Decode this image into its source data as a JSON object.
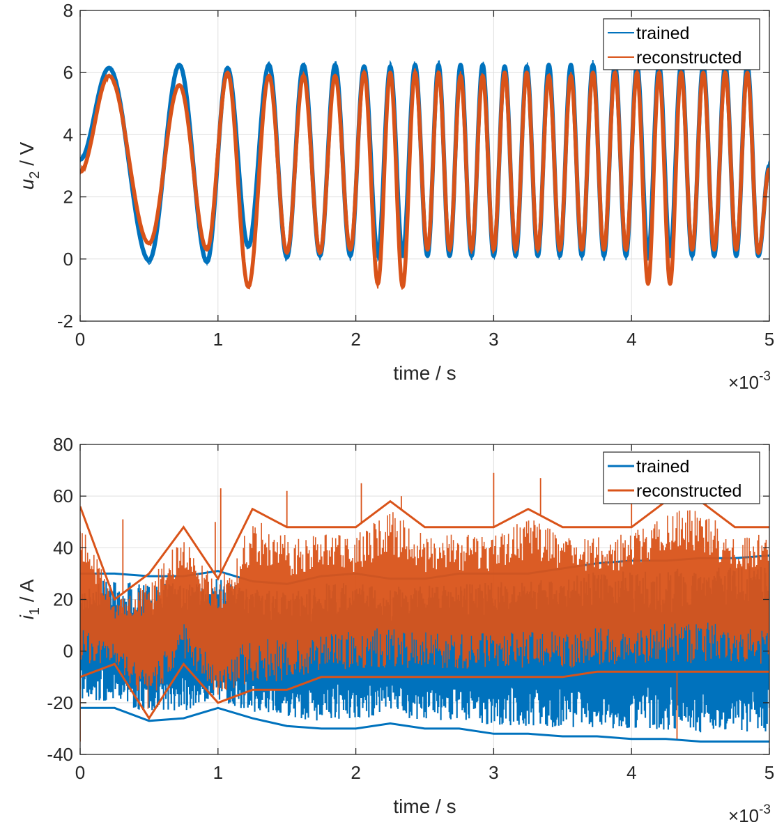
{
  "colors": {
    "trained": "#0072BD",
    "reconstructed": "#D95319",
    "grid": "#DFDFDF",
    "axis": "#262626"
  },
  "chart_data": [
    {
      "type": "line",
      "xlabel": "time / s",
      "ylabel_main": "u",
      "ylabel_sub": "2",
      "ylabel_rest": " / V",
      "xlim": [
        0,
        5
      ],
      "ylim": [
        -2,
        8
      ],
      "x_ticks": [
        0,
        1,
        2,
        3,
        4,
        5
      ],
      "y_ticks": [
        -2,
        0,
        2,
        4,
        6,
        8
      ],
      "x_tick_labels": [
        "0",
        "1",
        "2",
        "3",
        "4",
        "5"
      ],
      "y_tick_labels": [
        "-2",
        "0",
        "2",
        "4",
        "6",
        "8"
      ],
      "x_exponent_base": "×10",
      "x_exponent_power": "-3",
      "grid": true,
      "legend_position": "top-right",
      "series": [
        {
          "name": "trained",
          "x": [
            0,
            0.21,
            0.5,
            0.72,
            0.92,
            1.07,
            1.22,
            1.37,
            1.5,
            1.62,
            1.74,
            1.85,
            1.96,
            2.06,
            2.16,
            2.25,
            2.34,
            2.43,
            2.52,
            2.6,
            2.68,
            2.76,
            2.84,
            2.92,
            3.0,
            3.08,
            3.16,
            3.24,
            3.32,
            3.4,
            3.48,
            3.56,
            3.64,
            3.72,
            3.8,
            3.88,
            3.96,
            4.04,
            4.12,
            4.2,
            4.28,
            4.36,
            4.44,
            4.52,
            4.6,
            4.68,
            4.76,
            4.84,
            4.92,
            5.0
          ],
          "values": [
            3.2,
            6.15,
            -0.05,
            6.25,
            -0.1,
            6.15,
            0.4,
            6.25,
            0.05,
            6.25,
            0.1,
            6.25,
            0.1,
            6.2,
            0.1,
            6.2,
            0.1,
            6.25,
            0.1,
            6.25,
            0.1,
            6.25,
            0.1,
            6.25,
            0.1,
            6.2,
            0.1,
            6.2,
            0.1,
            6.25,
            0.1,
            6.25,
            0.1,
            6.25,
            0.1,
            6.25,
            0.1,
            6.25,
            0.1,
            6.25,
            0.1,
            6.25,
            0.1,
            6.25,
            0.1,
            6.25,
            0.1,
            6.25,
            0.1,
            3.0
          ]
        },
        {
          "name": "reconstructed",
          "x": [
            0,
            0.21,
            0.5,
            0.72,
            0.92,
            1.07,
            1.22,
            1.37,
            1.5,
            1.62,
            1.74,
            1.85,
            1.96,
            2.06,
            2.16,
            2.25,
            2.34,
            2.43,
            2.52,
            2.6,
            2.68,
            2.76,
            2.84,
            2.92,
            3.0,
            3.08,
            3.16,
            3.24,
            3.32,
            3.4,
            3.48,
            3.56,
            3.64,
            3.72,
            3.8,
            3.88,
            3.96,
            4.04,
            4.12,
            4.2,
            4.28,
            4.36,
            4.44,
            4.52,
            4.6,
            4.68,
            4.76,
            4.84,
            4.92,
            5.0
          ],
          "values": [
            2.8,
            5.9,
            0.5,
            5.6,
            0.3,
            6.0,
            -0.9,
            5.9,
            0.2,
            5.9,
            0.2,
            5.9,
            0.3,
            6.0,
            -0.8,
            6.0,
            -0.9,
            6.0,
            0.3,
            6.0,
            0.3,
            5.9,
            0.3,
            5.9,
            0.3,
            6.0,
            0.3,
            6.0,
            0.3,
            5.9,
            0.3,
            5.9,
            0.3,
            6.0,
            0.3,
            6.0,
            0.3,
            6.0,
            -0.8,
            6.0,
            -0.8,
            6.0,
            0.3,
            6.0,
            0.3,
            6.0,
            0.3,
            6.0,
            0.2,
            2.9
          ]
        }
      ]
    },
    {
      "type": "line",
      "xlabel": "time / s",
      "ylabel_main": "i",
      "ylabel_sub": "1",
      "ylabel_rest": " / A",
      "xlim": [
        0,
        5
      ],
      "ylim": [
        -40,
        80
      ],
      "x_ticks": [
        0,
        1,
        2,
        3,
        4,
        5
      ],
      "y_ticks": [
        -40,
        -20,
        0,
        20,
        40,
        60,
        80
      ],
      "x_tick_labels": [
        "0",
        "1",
        "2",
        "3",
        "4",
        "5"
      ],
      "y_tick_labels": [
        "-40",
        "-20",
        "0",
        "20",
        "40",
        "60",
        "80"
      ],
      "x_exponent_base": "×10",
      "x_exponent_power": "-3",
      "grid": true,
      "legend_position": "top-right",
      "series": [
        {
          "name": "trained",
          "x": [
            0,
            0.25,
            0.5,
            0.75,
            1.0,
            1.25,
            1.5,
            1.75,
            2.0,
            2.25,
            2.5,
            2.75,
            3.0,
            3.25,
            3.5,
            3.75,
            4.0,
            4.25,
            4.5,
            4.75,
            5.0
          ],
          "upper": [
            30,
            30,
            29,
            29,
            31,
            27,
            26,
            29,
            30,
            28,
            28,
            30,
            30,
            30,
            32,
            34,
            35,
            35,
            36,
            36,
            37
          ],
          "lower": [
            -22,
            -22,
            -27,
            -26,
            -22,
            -26,
            -29,
            -30,
            -30,
            -28,
            -30,
            -30,
            -32,
            -32,
            -33,
            -33,
            -34,
            -34,
            -35,
            -35,
            -35
          ]
        },
        {
          "name": "reconstructed",
          "x": [
            0,
            0.25,
            0.5,
            0.75,
            1.0,
            1.25,
            1.5,
            1.75,
            2.0,
            2.25,
            2.5,
            2.75,
            3.0,
            3.25,
            3.5,
            3.75,
            4.0,
            4.25,
            4.5,
            4.75,
            5.0
          ],
          "upper": [
            56,
            20,
            30,
            48,
            28,
            55,
            48,
            48,
            48,
            58,
            48,
            48,
            48,
            55,
            48,
            48,
            48,
            58,
            58,
            48,
            48
          ],
          "lower": [
            -10,
            -5,
            -26,
            -5,
            -20,
            -15,
            -15,
            -10,
            -10,
            -10,
            -10,
            -10,
            -10,
            -10,
            -10,
            -8,
            -8,
            -8,
            -8,
            -8,
            -8
          ],
          "spikes": [
            [
              0.0,
              -35
            ],
            [
              0.31,
              51
            ],
            [
              0.98,
              50
            ],
            [
              1.02,
              63
            ],
            [
              1.5,
              62
            ],
            [
              2.04,
              65
            ],
            [
              2.33,
              60
            ],
            [
              3.0,
              69
            ],
            [
              3.34,
              67
            ],
            [
              4.0,
              58
            ],
            [
              4.33,
              -34
            ],
            [
              4.54,
              65
            ]
          ]
        }
      ]
    }
  ]
}
